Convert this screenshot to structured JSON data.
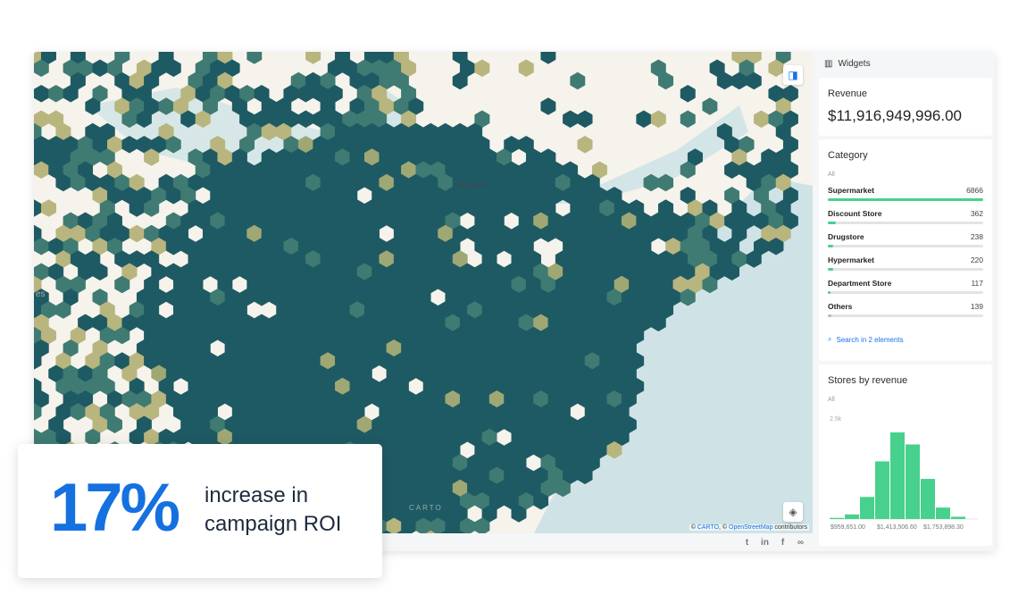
{
  "map": {
    "city_label": "Toronto",
    "edge_label": "es",
    "watermark": "CARTO",
    "attribution": {
      "prefix": "© ",
      "carto": "CARTO",
      "mid": ", © ",
      "osm": "OpenStreetMap",
      "suffix": " contributors"
    },
    "colors": {
      "land": "#f6f3ec",
      "water": "#cfe3e6",
      "hex_dark": "#1e5a63",
      "hex_mid": "#3f7b72",
      "hex_light": "#b8b57e"
    }
  },
  "footer": {
    "icons": [
      "twitter-icon",
      "linkedin-icon",
      "facebook-icon",
      "link-icon"
    ]
  },
  "sidebar": {
    "header": "Widgets",
    "revenue": {
      "title": "Revenue",
      "value": "$11,916,949,996.00"
    },
    "category": {
      "title": "Category",
      "filter": "All",
      "accent": "#47d18c",
      "items": [
        {
          "label": "Supermarket",
          "value": "6866"
        },
        {
          "label": "Discount Store",
          "value": "362"
        },
        {
          "label": "Drugstore",
          "value": "238"
        },
        {
          "label": "Hypermarket",
          "value": "220"
        },
        {
          "label": "Department Store",
          "value": "117"
        },
        {
          "label": "Others",
          "value": "139"
        }
      ],
      "search": "Search in 2 elements"
    },
    "stores": {
      "title": "Stores by revenue",
      "filter": "All"
    }
  },
  "chart_data": {
    "type": "bar",
    "title": "Stores by revenue",
    "y_tick": "2.5k",
    "ylim": [
      0,
      2500
    ],
    "values": [
      28,
      114,
      547,
      1428,
      2145,
      1847,
      994,
      284,
      57
    ],
    "x_tick_labels": [
      "$959,651.00",
      "$1,413,506.60",
      "$1,753,898.30"
    ],
    "color": "#47d18c"
  },
  "overlay": {
    "stat": "17%",
    "line1": "increase in",
    "line2": "campaign ROI"
  }
}
